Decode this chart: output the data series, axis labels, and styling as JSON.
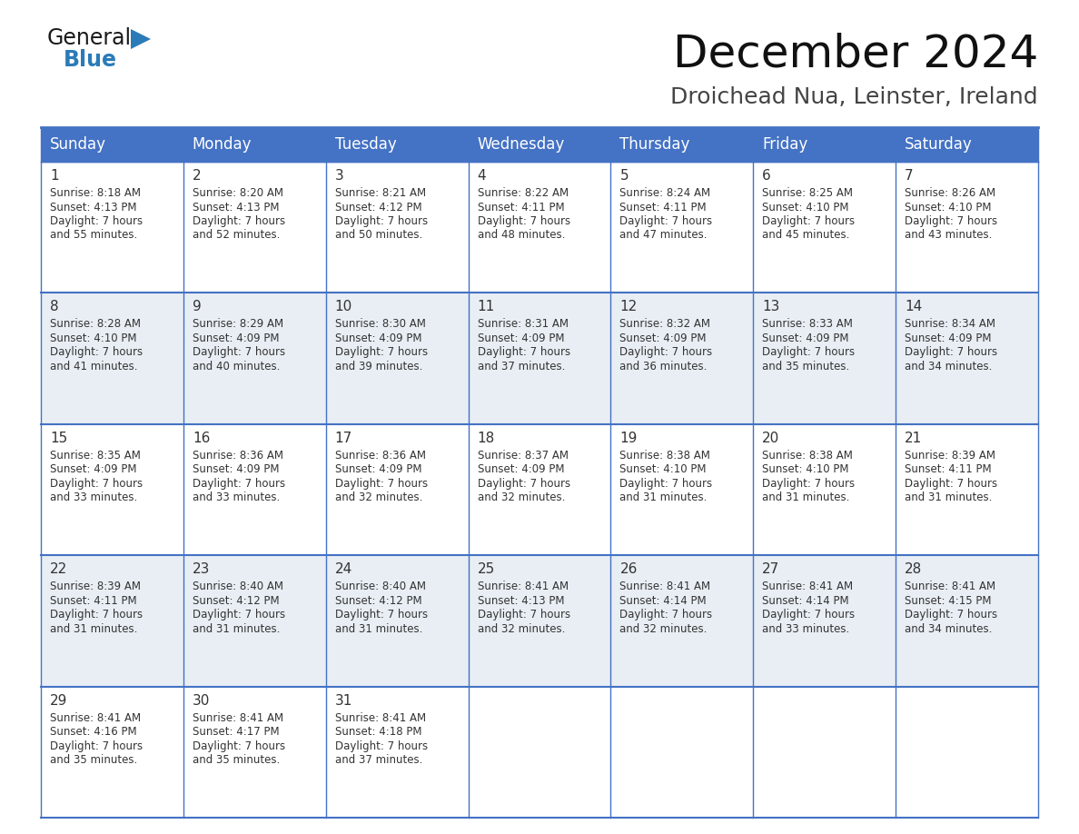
{
  "title": "December 2024",
  "subtitle": "Droichead Nua, Leinster, Ireland",
  "header_bg_color": "#4472C4",
  "header_text_color": "#FFFFFF",
  "cell_bg_even": "#FFFFFF",
  "cell_bg_odd": "#E8EEF4",
  "grid_line_color": "#4472C4",
  "text_color": "#333333",
  "day_num_color": "#333333",
  "day_headers": [
    "Sunday",
    "Monday",
    "Tuesday",
    "Wednesday",
    "Thursday",
    "Friday",
    "Saturday"
  ],
  "weeks": [
    [
      {
        "day": 1,
        "sunrise": "8:18 AM",
        "sunset": "4:13 PM",
        "daylight": "7 hours and 55 minutes"
      },
      {
        "day": 2,
        "sunrise": "8:20 AM",
        "sunset": "4:13 PM",
        "daylight": "7 hours and 52 minutes"
      },
      {
        "day": 3,
        "sunrise": "8:21 AM",
        "sunset": "4:12 PM",
        "daylight": "7 hours and 50 minutes"
      },
      {
        "day": 4,
        "sunrise": "8:22 AM",
        "sunset": "4:11 PM",
        "daylight": "7 hours and 48 minutes"
      },
      {
        "day": 5,
        "sunrise": "8:24 AM",
        "sunset": "4:11 PM",
        "daylight": "7 hours and 47 minutes"
      },
      {
        "day": 6,
        "sunrise": "8:25 AM",
        "sunset": "4:10 PM",
        "daylight": "7 hours and 45 minutes"
      },
      {
        "day": 7,
        "sunrise": "8:26 AM",
        "sunset": "4:10 PM",
        "daylight": "7 hours and 43 minutes"
      }
    ],
    [
      {
        "day": 8,
        "sunrise": "8:28 AM",
        "sunset": "4:10 PM",
        "daylight": "7 hours and 41 minutes"
      },
      {
        "day": 9,
        "sunrise": "8:29 AM",
        "sunset": "4:09 PM",
        "daylight": "7 hours and 40 minutes"
      },
      {
        "day": 10,
        "sunrise": "8:30 AM",
        "sunset": "4:09 PM",
        "daylight": "7 hours and 39 minutes"
      },
      {
        "day": 11,
        "sunrise": "8:31 AM",
        "sunset": "4:09 PM",
        "daylight": "7 hours and 37 minutes"
      },
      {
        "day": 12,
        "sunrise": "8:32 AM",
        "sunset": "4:09 PM",
        "daylight": "7 hours and 36 minutes"
      },
      {
        "day": 13,
        "sunrise": "8:33 AM",
        "sunset": "4:09 PM",
        "daylight": "7 hours and 35 minutes"
      },
      {
        "day": 14,
        "sunrise": "8:34 AM",
        "sunset": "4:09 PM",
        "daylight": "7 hours and 34 minutes"
      }
    ],
    [
      {
        "day": 15,
        "sunrise": "8:35 AM",
        "sunset": "4:09 PM",
        "daylight": "7 hours and 33 minutes"
      },
      {
        "day": 16,
        "sunrise": "8:36 AM",
        "sunset": "4:09 PM",
        "daylight": "7 hours and 33 minutes"
      },
      {
        "day": 17,
        "sunrise": "8:36 AM",
        "sunset": "4:09 PM",
        "daylight": "7 hours and 32 minutes"
      },
      {
        "day": 18,
        "sunrise": "8:37 AM",
        "sunset": "4:09 PM",
        "daylight": "7 hours and 32 minutes"
      },
      {
        "day": 19,
        "sunrise": "8:38 AM",
        "sunset": "4:10 PM",
        "daylight": "7 hours and 31 minutes"
      },
      {
        "day": 20,
        "sunrise": "8:38 AM",
        "sunset": "4:10 PM",
        "daylight": "7 hours and 31 minutes"
      },
      {
        "day": 21,
        "sunrise": "8:39 AM",
        "sunset": "4:11 PM",
        "daylight": "7 hours and 31 minutes"
      }
    ],
    [
      {
        "day": 22,
        "sunrise": "8:39 AM",
        "sunset": "4:11 PM",
        "daylight": "7 hours and 31 minutes"
      },
      {
        "day": 23,
        "sunrise": "8:40 AM",
        "sunset": "4:12 PM",
        "daylight": "7 hours and 31 minutes"
      },
      {
        "day": 24,
        "sunrise": "8:40 AM",
        "sunset": "4:12 PM",
        "daylight": "7 hours and 31 minutes"
      },
      {
        "day": 25,
        "sunrise": "8:41 AM",
        "sunset": "4:13 PM",
        "daylight": "7 hours and 32 minutes"
      },
      {
        "day": 26,
        "sunrise": "8:41 AM",
        "sunset": "4:14 PM",
        "daylight": "7 hours and 32 minutes"
      },
      {
        "day": 27,
        "sunrise": "8:41 AM",
        "sunset": "4:14 PM",
        "daylight": "7 hours and 33 minutes"
      },
      {
        "day": 28,
        "sunrise": "8:41 AM",
        "sunset": "4:15 PM",
        "daylight": "7 hours and 34 minutes"
      }
    ],
    [
      {
        "day": 29,
        "sunrise": "8:41 AM",
        "sunset": "4:16 PM",
        "daylight": "7 hours and 35 minutes"
      },
      {
        "day": 30,
        "sunrise": "8:41 AM",
        "sunset": "4:17 PM",
        "daylight": "7 hours and 35 minutes"
      },
      {
        "day": 31,
        "sunrise": "8:41 AM",
        "sunset": "4:18 PM",
        "daylight": "7 hours and 37 minutes"
      },
      null,
      null,
      null,
      null
    ]
  ],
  "logo_text_general": "General",
  "logo_text_blue": "Blue",
  "logo_color_general": "#1a1a1a",
  "logo_color_blue": "#2B7BB9",
  "logo_triangle_color": "#2B7BB9"
}
